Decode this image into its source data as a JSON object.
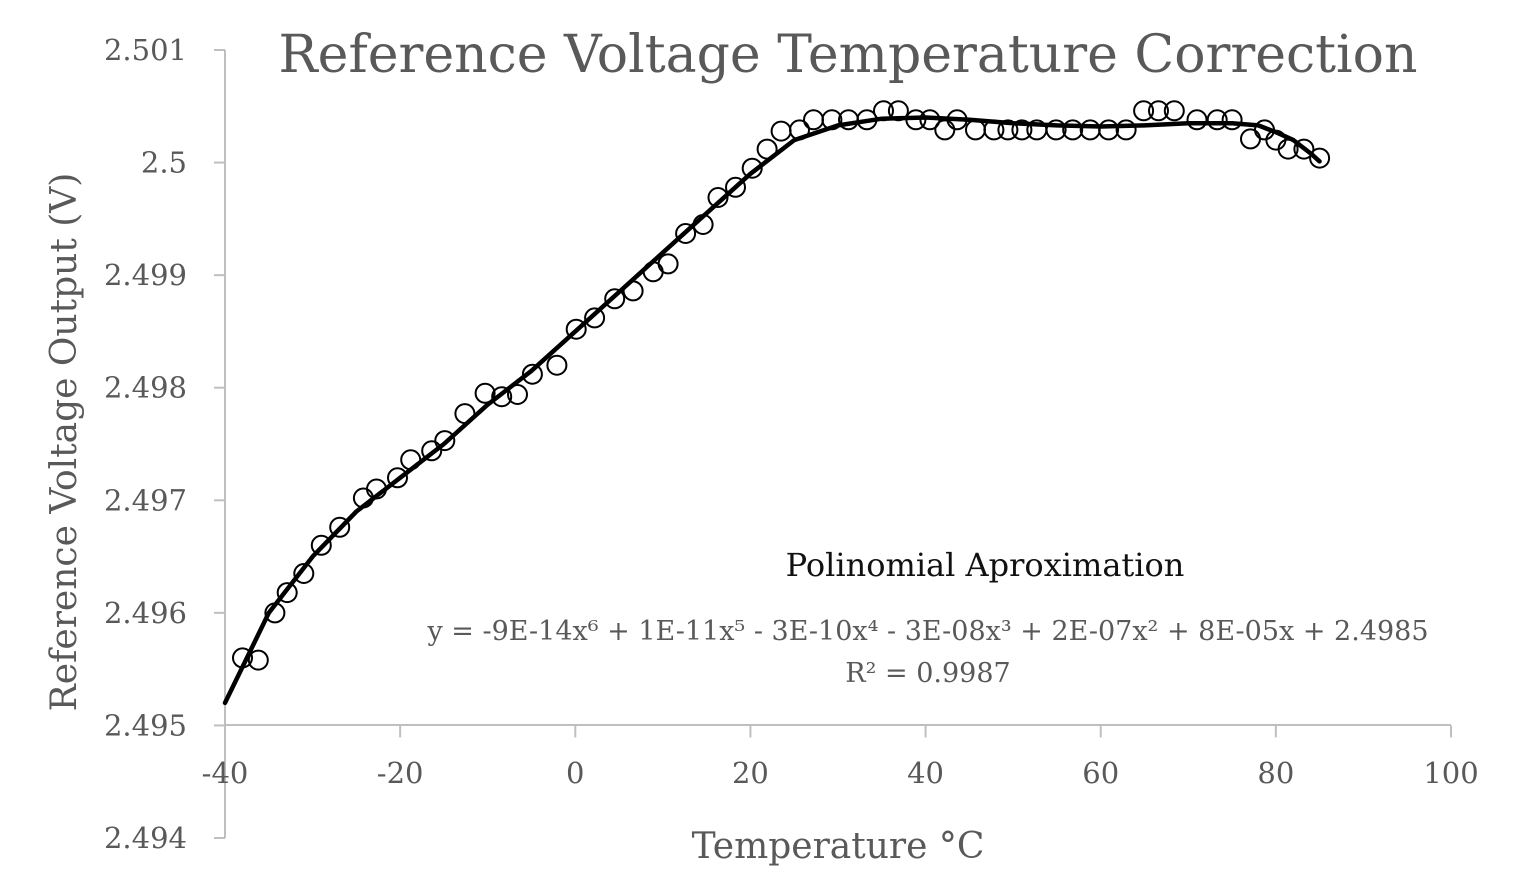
{
  "chart_data": {
    "type": "scatter",
    "title": "Reference Voltage Temperature Correction",
    "xlabel": "Temperature °C",
    "ylabel": "Reference Voltage  Output (V)",
    "xlim": [
      -40,
      100
    ],
    "ylim": [
      2.494,
      2.501
    ],
    "x_axis_crosses_at": 2.495,
    "x_ticks": [
      "-40",
      "-20",
      "0",
      "20",
      "40",
      "60",
      "80",
      "100"
    ],
    "y_ticks": [
      "2.494",
      "2.495",
      "2.496",
      "2.497",
      "2.498",
      "2.499",
      "2.5",
      "2.501"
    ],
    "grid": false,
    "legend": "none",
    "series": [
      {
        "marker": "open-circle",
        "color": "#000000",
        "points": [
          [
            -38,
            2.4956
          ],
          [
            -36.2,
            2.49558
          ],
          [
            -34.3,
            2.496
          ],
          [
            -32.9,
            2.49618
          ],
          [
            -31,
            2.49635
          ],
          [
            -29,
            2.4966
          ],
          [
            -26.9,
            2.49676
          ],
          [
            -24.2,
            2.49702
          ],
          [
            -22.7,
            2.4971
          ],
          [
            -20.3,
            2.4972
          ],
          [
            -18.8,
            2.49736
          ],
          [
            -16.4,
            2.49744
          ],
          [
            -14.9,
            2.49753
          ],
          [
            -12.6,
            2.49777
          ],
          [
            -10.3,
            2.49795
          ],
          [
            -8.4,
            2.49792
          ],
          [
            -6.6,
            2.49794
          ],
          [
            -4.9,
            2.49812
          ],
          [
            -2.1,
            2.4982
          ],
          [
            0.1,
            2.49852
          ],
          [
            2.2,
            2.49862
          ],
          [
            4.5,
            2.49879
          ],
          [
            6.6,
            2.49886
          ],
          [
            8.9,
            2.49903
          ],
          [
            10.6,
            2.4991
          ],
          [
            12.6,
            2.49937
          ],
          [
            14.6,
            2.49945
          ],
          [
            16.3,
            2.49969
          ],
          [
            18.3,
            2.49978
          ],
          [
            20.2,
            2.49995
          ],
          [
            21.9,
            2.50012
          ],
          [
            23.5,
            2.50028
          ],
          [
            25.6,
            2.50029
          ],
          [
            27.2,
            2.50038
          ],
          [
            29.3,
            2.50038
          ],
          [
            31.2,
            2.50038
          ],
          [
            33.3,
            2.50038
          ],
          [
            35.2,
            2.50046
          ],
          [
            36.9,
            2.50046
          ],
          [
            38.9,
            2.50038
          ],
          [
            40.5,
            2.50038
          ],
          [
            42.2,
            2.50029
          ],
          [
            43.6,
            2.50038
          ],
          [
            45.7,
            2.50029
          ],
          [
            47.8,
            2.50029
          ],
          [
            49.4,
            2.50029
          ],
          [
            51,
            2.50029
          ],
          [
            52.7,
            2.50029
          ],
          [
            54.9,
            2.50029
          ],
          [
            56.8,
            2.50029
          ],
          [
            58.8,
            2.50029
          ],
          [
            60.9,
            2.50029
          ],
          [
            62.9,
            2.50029
          ],
          [
            64.9,
            2.50046
          ],
          [
            66.6,
            2.50046
          ],
          [
            68.4,
            2.50046
          ],
          [
            71,
            2.50038
          ],
          [
            73.3,
            2.50038
          ],
          [
            75,
            2.50038
          ],
          [
            77.1,
            2.50021
          ],
          [
            78.7,
            2.50029
          ],
          [
            80,
            2.5002
          ],
          [
            81.4,
            2.50012
          ],
          [
            83.2,
            2.50012
          ],
          [
            85,
            2.50004
          ]
        ]
      },
      {
        "name": "Polinomial Aproximation",
        "kind": "trendline",
        "color": "#000000",
        "coefficients": [
          2.4985,
          8e-05,
          2e-07,
          -3e-08,
          -3e-10,
          1e-11,
          -9e-14
        ],
        "curve": [
          [
            -40,
            2.4952
          ],
          [
            -35,
            2.496
          ],
          [
            -30,
            2.4965
          ],
          [
            -25,
            2.4969
          ],
          [
            -20,
            2.4972
          ],
          [
            -15,
            2.4975
          ],
          [
            -10,
            2.49785
          ],
          [
            -5,
            2.49815
          ],
          [
            0,
            2.4985
          ],
          [
            5,
            2.49885
          ],
          [
            10,
            2.4992
          ],
          [
            15,
            2.49955
          ],
          [
            20,
            2.4999
          ],
          [
            25,
            2.5002
          ],
          [
            30,
            2.50033
          ],
          [
            35,
            2.50039
          ],
          [
            40,
            2.5004
          ],
          [
            45,
            2.50038
          ],
          [
            50,
            2.50035
          ],
          [
            55,
            2.50033
          ],
          [
            60,
            2.50032
          ],
          [
            65,
            2.50033
          ],
          [
            70,
            2.50035
          ],
          [
            75,
            2.50035
          ],
          [
            78,
            2.50033
          ],
          [
            80,
            2.50027
          ],
          [
            82,
            2.5002
          ],
          [
            84,
            2.50008
          ],
          [
            85,
            2.50001
          ]
        ]
      }
    ],
    "annotations": {
      "fit_title": "Polinomial Aproximation",
      "equation": "y = -9E-14x⁶ + 1E-11x⁵ - 3E-10x⁴ - 3E-08x³ + 2E-07x² + 8E-05x + 2.4985",
      "r_squared": "R² = 0.9987"
    }
  }
}
